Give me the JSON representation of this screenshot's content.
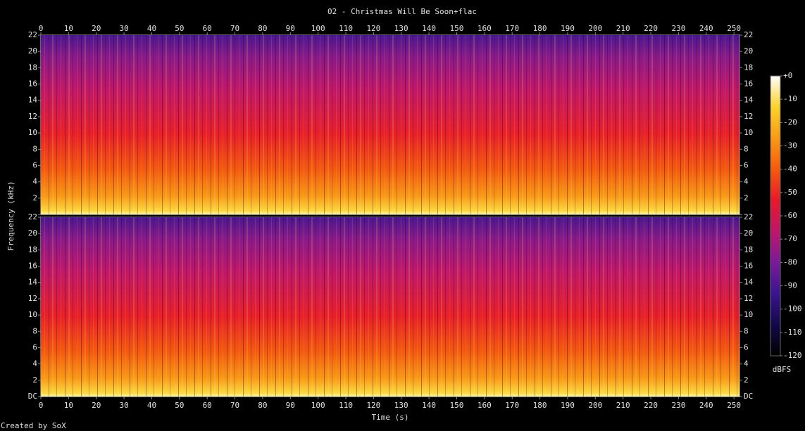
{
  "chart_data": {
    "type": "spectrogram",
    "title": "02 - Christmas Will Be Soon+flac",
    "xlabel": "Time (s)",
    "ylabel": "Frequency (kHz)",
    "colorbar_label": "dBFS",
    "credit": "Created by SoX",
    "channels": 2,
    "xlim": [
      0,
      252
    ],
    "xticks": [
      0,
      10,
      20,
      30,
      40,
      50,
      60,
      70,
      80,
      90,
      100,
      110,
      120,
      130,
      140,
      150,
      160,
      170,
      180,
      190,
      200,
      210,
      220,
      230,
      240,
      250
    ],
    "ylim": [
      0,
      22
    ],
    "yticks": [
      {
        "value": 0,
        "label": "DC"
      },
      2,
      4,
      6,
      8,
      10,
      12,
      14,
      16,
      18,
      20,
      22
    ],
    "clim": [
      -120,
      0
    ],
    "cticks": [
      {
        "value": 0,
        "label": "+0"
      },
      -10,
      -20,
      -30,
      -40,
      -50,
      -60,
      -70,
      -80,
      -90,
      -100,
      -110,
      -120
    ],
    "colormap": [
      "#000000",
      "#14084a",
      "#3a1490",
      "#7a1a9a",
      "#c0166a",
      "#e8182a",
      "#f65a0c",
      "#fa9a14",
      "#fcd22a",
      "#ffffff"
    ]
  }
}
